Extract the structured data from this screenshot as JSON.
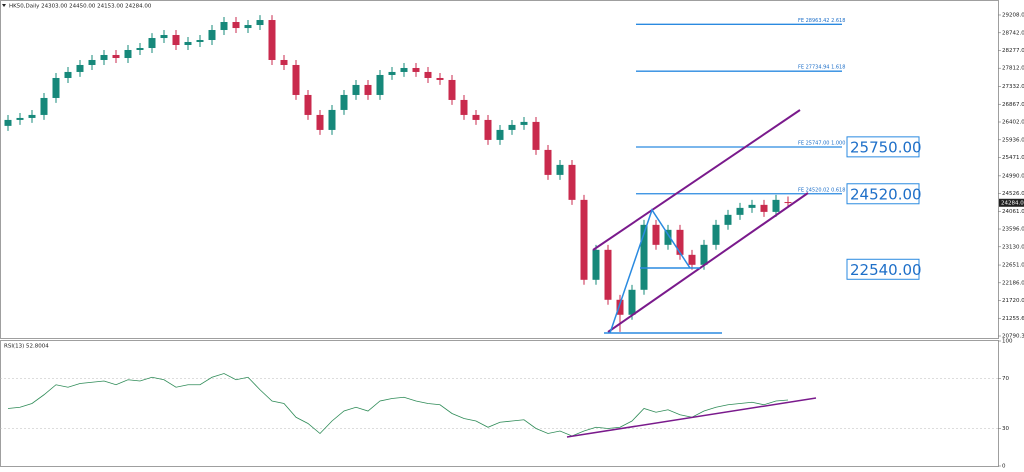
{
  "chart_data": [
    {
      "type": "candlestick",
      "title": "HK50,Daily 24303.00 24450.00 24153.00 24284.00",
      "up_color": "#16887a",
      "down_color": "#c92a4d",
      "ylim": [
        20738,
        29601
      ],
      "yticks": [
        {
          "value": 29208,
          "label": "29208.00"
        },
        {
          "value": 28742,
          "label": "28742.00"
        },
        {
          "value": 28277,
          "label": "28277.00"
        },
        {
          "value": 27812,
          "label": "27812.00"
        },
        {
          "value": 27332,
          "label": "27332.00"
        },
        {
          "value": 26867,
          "label": "26867.00"
        },
        {
          "value": 26402,
          "label": "26402.00"
        },
        {
          "value": 25936,
          "label": "25936.00"
        },
        {
          "value": 25471,
          "label": "25471.00"
        },
        {
          "value": 24990,
          "label": "24990.00"
        },
        {
          "value": 24526,
          "label": "24526.00"
        },
        {
          "value": 24061,
          "label": "24061.00"
        },
        {
          "value": 23596,
          "label": "23596.00"
        },
        {
          "value": 23130,
          "label": "23130.00"
        },
        {
          "value": 22651,
          "label": "22651.00"
        },
        {
          "value": 22186,
          "label": "22186.00"
        },
        {
          "value": 21720,
          "label": "21720.00"
        },
        {
          "value": 21255.6,
          "label": "21255.60"
        },
        {
          "value": 20790.3,
          "label": "20790.30"
        }
      ],
      "open": [
        26300,
        26456,
        26508,
        26587,
        27032,
        27556,
        27714,
        27897,
        28028,
        28159,
        28080,
        28290,
        28342,
        28604,
        28683,
        28421,
        28500,
        28552,
        28814,
        29024,
        28866,
        28945,
        29076,
        28028,
        27897,
        27111,
        26587,
        26194,
        26718,
        27111,
        27373,
        27111,
        27635,
        27714,
        27818,
        27714,
        27556,
        27504,
        26980,
        26587,
        26456,
        25932,
        26194,
        26325,
        26404,
        25670,
        25015,
        25277,
        24360,
        22264,
        23050,
        21740,
        21347,
        22002,
        23705,
        23181,
        23574,
        22919,
        22657,
        23181,
        23705,
        23967,
        24150,
        24229,
        24045,
        24303
      ],
      "high": [
        26586,
        26638,
        26717,
        27162,
        27686,
        27844,
        28027,
        28158,
        28289,
        28289,
        28420,
        28472,
        28734,
        28813,
        28813,
        28630,
        28682,
        28944,
        29154,
        29154,
        29075,
        29206,
        29206,
        28158,
        28027,
        27241,
        26717,
        26848,
        27241,
        27503,
        27503,
        27765,
        27844,
        27948,
        27948,
        27844,
        27686,
        27634,
        27110,
        26717,
        26586,
        26324,
        26455,
        26534,
        26534,
        25800,
        25407,
        25407,
        24490,
        23180,
        23180,
        21870,
        22132,
        23835,
        23835,
        23704,
        23704,
        23049,
        23311,
        23835,
        24097,
        24280,
        24359,
        24359,
        24490,
        24450
      ],
      "low": [
        26170,
        26326,
        26378,
        26457,
        26902,
        27426,
        27584,
        27767,
        27898,
        27950,
        27950,
        28160,
        28212,
        28474,
        28291,
        28291,
        28370,
        28422,
        28684,
        28736,
        28736,
        28815,
        27898,
        27767,
        26981,
        26457,
        26064,
        26064,
        26588,
        26981,
        26981,
        26981,
        27505,
        27584,
        27584,
        27426,
        27374,
        26850,
        26457,
        26326,
        25802,
        25802,
        26064,
        26195,
        25540,
        24885,
        24885,
        24230,
        22134,
        22134,
        21610,
        20900,
        21217,
        21872,
        23051,
        23051,
        22789,
        22527,
        22527,
        23051,
        23575,
        23837,
        24020,
        23915,
        23915,
        24153
      ],
      "close": [
        26456,
        26508,
        26587,
        27032,
        27556,
        27714,
        27897,
        28028,
        28159,
        28080,
        28290,
        28342,
        28604,
        28683,
        28421,
        28500,
        28552,
        28814,
        29024,
        28866,
        28945,
        29076,
        28028,
        27897,
        27111,
        26587,
        26194,
        26718,
        27111,
        27373,
        27111,
        27635,
        27714,
        27818,
        27714,
        27556,
        27504,
        26980,
        26587,
        26456,
        25932,
        26194,
        26325,
        26404,
        25670,
        25015,
        25277,
        24360,
        22264,
        23050,
        21740,
        21347,
        22002,
        23705,
        23181,
        23574,
        22919,
        22657,
        23181,
        23705,
        23967,
        24150,
        24229,
        24045,
        24360,
        24284
      ],
      "last_price": {
        "value": 24284,
        "label": "24284.00"
      },
      "fib_levels": [
        {
          "value": 28963.42,
          "label": "FE 28963.42  2.618"
        },
        {
          "value": 27734.94,
          "label": "FE 27734.94  1.618"
        },
        {
          "value": 25747.0,
          "label": "FE 25747.00  1.000"
        },
        {
          "value": 24520.02,
          "label": "FE 24520.02  0.618"
        }
      ],
      "price_labels": [
        {
          "value": 25750,
          "label": "25750.00"
        },
        {
          "value": 24520,
          "label": "24520.00"
        },
        {
          "value": 22540,
          "label": "22540.00"
        }
      ]
    },
    {
      "type": "line",
      "title": "RSI(13) 52.8004",
      "color": "#2e8b57",
      "ylim": [
        0,
        100
      ],
      "yticks": [
        100,
        70,
        30,
        0
      ],
      "levels": [
        70,
        30
      ],
      "values": [
        46,
        47,
        50,
        57,
        65,
        63,
        66,
        67,
        68,
        65,
        69,
        68,
        71,
        69,
        63,
        65,
        65,
        71,
        74,
        69,
        71,
        61,
        52,
        50,
        39,
        34,
        26,
        36,
        44,
        47,
        44,
        52,
        54,
        55,
        52,
        50,
        49,
        42,
        38,
        36,
        31,
        35,
        36,
        37,
        30,
        26,
        28,
        24,
        28,
        31,
        30,
        31,
        36,
        46,
        43,
        45,
        41,
        39,
        44,
        47,
        49,
        50,
        51,
        49,
        52,
        52.8
      ]
    }
  ]
}
